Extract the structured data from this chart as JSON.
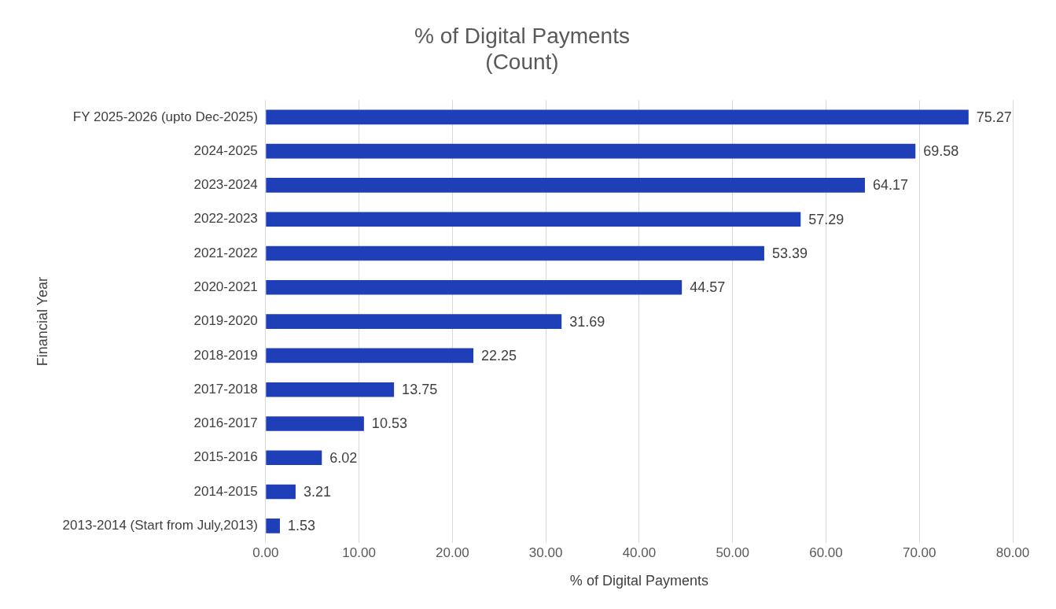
{
  "chart_data": {
    "type": "bar",
    "orientation": "horizontal",
    "title": "% of Digital Payments\n(Count)",
    "xlabel": "% of Digital Payments",
    "ylabel": "Financial Year",
    "categories": [
      "FY 2025-2026 (upto Dec-2025)",
      "2024-2025",
      "2023-2024",
      "2022-2023",
      "2021-2022",
      "2020-2021",
      "2019-2020",
      "2018-2019",
      "2017-2018",
      "2016-2017",
      "2015-2016",
      "2014-2015",
      "2013-2014 (Start from July,2013)"
    ],
    "values": [
      75.27,
      69.58,
      64.17,
      57.29,
      53.39,
      44.57,
      31.69,
      22.25,
      13.75,
      10.53,
      6.02,
      3.21,
      1.53
    ],
    "color": "#1f3fb8",
    "xlim": [
      0,
      80
    ],
    "xticks": [
      {
        "value": 0,
        "label": "0.00"
      },
      {
        "value": 10,
        "label": "10.00"
      },
      {
        "value": 20,
        "label": "20.00"
      },
      {
        "value": 30,
        "label": "30.00"
      },
      {
        "value": 40,
        "label": "40.00"
      },
      {
        "value": 50,
        "label": "50.00"
      },
      {
        "value": 60,
        "label": "60.00"
      },
      {
        "value": 70,
        "label": "70.00"
      },
      {
        "value": 80,
        "label": "80.00"
      }
    ],
    "grid": "x",
    "data_labels": true,
    "legend": false
  }
}
